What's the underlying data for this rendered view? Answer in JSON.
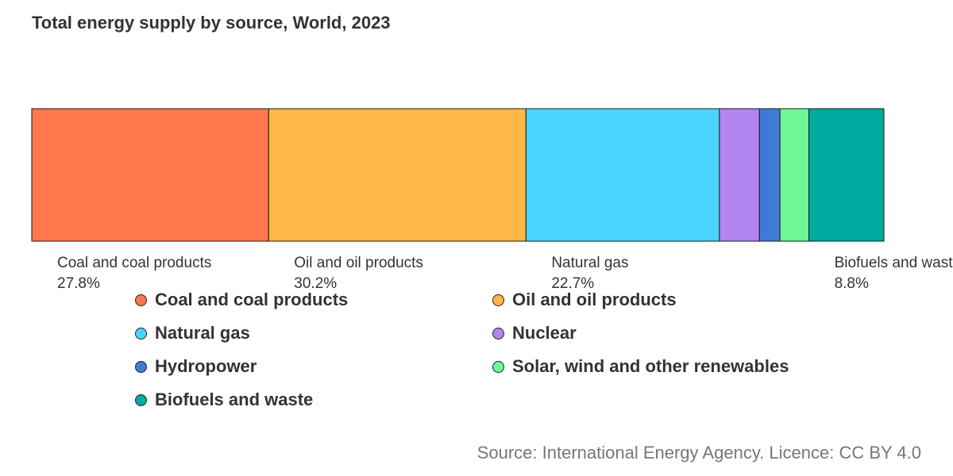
{
  "chart_data": {
    "type": "bar",
    "orientation": "horizontal-stacked-100",
    "title": "Total energy supply by source, World, 2023",
    "categories": [
      "World, 2023"
    ],
    "series": [
      {
        "name": "Coal and coal products",
        "value": 27.8,
        "value_label": "27.8%",
        "color": "#ff774d"
      },
      {
        "name": "Oil and oil products",
        "value": 30.2,
        "value_label": "30.2%",
        "color": "#ffb845"
      },
      {
        "name": "Natural gas",
        "value": 22.7,
        "value_label": "22.7%",
        "color": "#49d4ff"
      },
      {
        "name": "Nuclear",
        "value": 4.7,
        "color": "#b285f0"
      },
      {
        "name": "Hydropower",
        "value": 2.4,
        "color": "#3e7bd6"
      },
      {
        "name": "Solar, wind and other renewables",
        "value": 3.4,
        "color": "#6ef795"
      },
      {
        "name": "Biofuels and waste",
        "value": 8.8,
        "value_label": "8.8%",
        "color": "#00ab9f"
      }
    ],
    "xlim": [
      0,
      100
    ],
    "unit": "%",
    "grid": false,
    "legend_position": "bottom",
    "source": "Source: International Energy Agency. Licence: CC BY 4.0"
  }
}
